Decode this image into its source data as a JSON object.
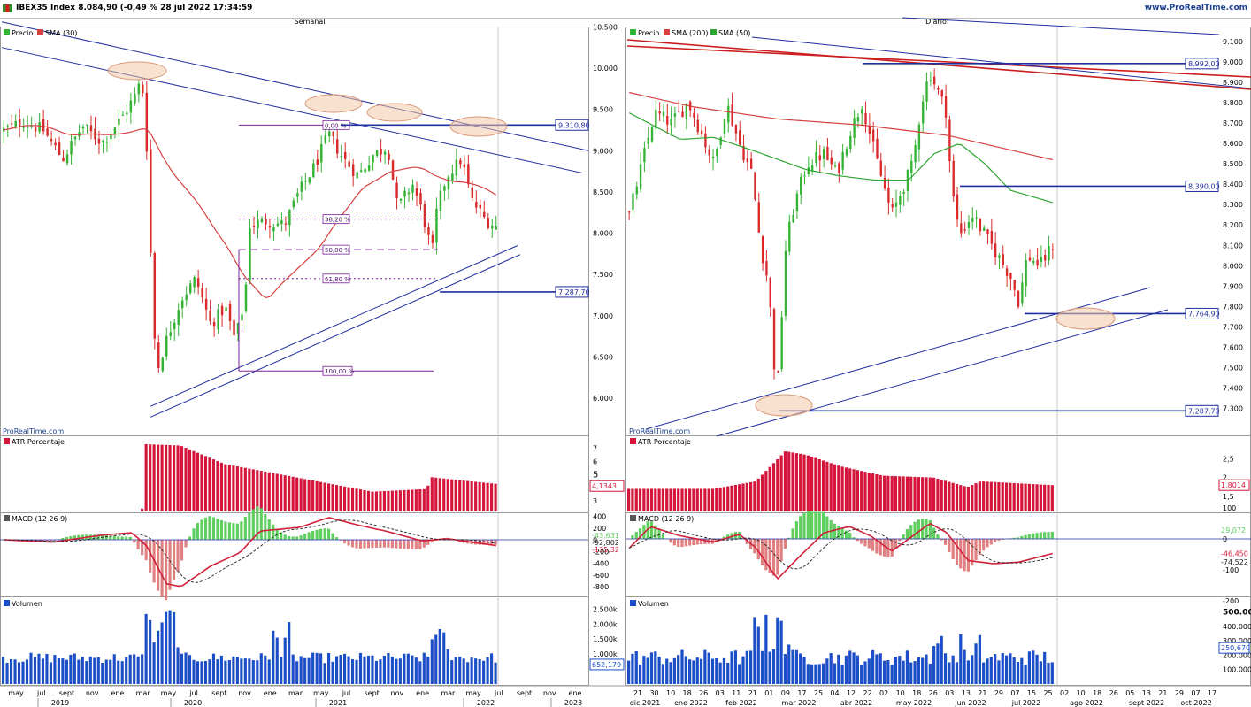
{
  "header": {
    "title": "IBEX35 Index 8.084,90 (-0,49 % 28 jul 2022 17:34:59",
    "brand": "www.ProRealTime.com"
  },
  "colors": {
    "up": "#35b335",
    "down": "#d92b2b",
    "sma_red": "#d64040",
    "sma_green": "#2ea52e",
    "blue_line": "#1f2f9e",
    "atr": "#d4163a",
    "macd_line": "#d0203a",
    "hist_pos": "#5fcf5f",
    "hist_neg": "#e08080",
    "volume": "#1c4fc7",
    "highlight": "#f3c9a8"
  },
  "left": {
    "panel_title": "Semanal",
    "legend": [
      {
        "label": "Precio",
        "color": "#35b335"
      },
      {
        "label": "SMA (30)",
        "color": "#d64040"
      }
    ],
    "watermark": "ProRealTime.com",
    "y_ticks": [
      "10.500",
      "10.000",
      "9.500",
      "9.000",
      "8.500",
      "8.000",
      "7.500",
      "7.000",
      "6.500",
      "6.000"
    ],
    "price_tags": [
      "9.310,80",
      "7.287,70"
    ],
    "fib_labels": [
      "0,00 %",
      "38,20 %",
      "50,00 %",
      "61,80 %",
      "100,00 %"
    ],
    "atr_label": "ATR Porcentaje",
    "atr_ticks": [
      "7",
      "6",
      "5",
      "4",
      "3"
    ],
    "atr_tag": "4,1343",
    "macd_label": "MACD (12 26 9)",
    "macd_ticks": [
      "400",
      "200",
      "0",
      "-200",
      "-400",
      "-600",
      "-800"
    ],
    "macd_tags": [
      "-43,631",
      "-92,802",
      "-135,32"
    ],
    "vol_label": "Volumen",
    "vol_ticks": [
      "2.500k",
      "2.000k",
      "1.500k",
      "1.000k"
    ],
    "vol_tag": "652,179",
    "x_months": [
      "may",
      "jul",
      "sept",
      "nov",
      "ene",
      "mar",
      "may",
      "jul",
      "sept",
      "nov",
      "ene",
      "mar",
      "may",
      "jul",
      "sept",
      "nov",
      "ene",
      "mar",
      "may",
      "jul",
      "sept",
      "nov",
      "ene"
    ],
    "x_years": [
      "2019",
      "2020",
      "2021",
      "2022",
      "2023"
    ]
  },
  "right": {
    "panel_title": "Diario",
    "legend": [
      {
        "label": "Precio",
        "color": "#35b335"
      },
      {
        "label": "SMA (200)",
        "color": "#d64040"
      },
      {
        "label": "SMA (50)",
        "color": "#2ea52e"
      }
    ],
    "watermark": "ProRealTime.com",
    "y_ticks": [
      "9.100",
      "9.000",
      "8.900",
      "8.800",
      "8.700",
      "8.600",
      "8.500",
      "8.400",
      "8.300",
      "8.200",
      "8.100",
      "8.000",
      "7.900",
      "7.800",
      "7.700",
      "7.600",
      "7.500",
      "7.400",
      "7.300"
    ],
    "price_tags": [
      "8.992,00",
      "8.390,00",
      "7.764,90",
      "7.287,70"
    ],
    "atr_label": "ATR Porcentaje",
    "atr_ticks": [
      "2,5",
      "2",
      "1,5"
    ],
    "atr_tag": "1,8014",
    "macd_label": "MACD (12 26 9)",
    "macd_ticks": [
      "100",
      "0",
      "-100",
      "-200"
    ],
    "macd_tags": [
      "29,072",
      "-46,450",
      "-74,522"
    ],
    "vol_label": "Volumen",
    "vol_ticks": [
      "500.000",
      "400.000",
      "300.000",
      "200.000",
      "100.000"
    ],
    "vol_tag": "250,670",
    "x_days": [
      "21",
      "30",
      "10",
      "18",
      "26",
      "03",
      "11",
      "21",
      "01",
      "09",
      "17",
      "25",
      "04",
      "12",
      "22",
      "02",
      "10",
      "18",
      "26",
      "03",
      "13",
      "21",
      "29",
      "07",
      "15",
      "25",
      "02",
      "10",
      "18",
      "26",
      "05",
      "13",
      "21",
      "29",
      "07",
      "17"
    ],
    "x_months": [
      "dic 2021",
      "ene 2022",
      "feb 2022",
      "mar 2022",
      "abr 2022",
      "may 2022",
      "jun 2022",
      "jul 2022",
      "ago 2022",
      "sept 2022",
      "oct 2022"
    ]
  },
  "chart_data": [
    {
      "type": "candlestick",
      "panel": "Semanal",
      "series": [
        {
          "name": "Precio"
        },
        {
          "name": "SMA (30)"
        }
      ],
      "ylim": [
        5700,
        10600
      ],
      "key_levels": [
        9310.8,
        7287.7
      ],
      "fib_levels": [
        {
          "label": "0,00 %",
          "value": 9310
        },
        {
          "label": "38,20 %",
          "value": 8170
        },
        {
          "label": "50,00 %",
          "value": 7800
        },
        {
          "label": "61,80 %",
          "value": 7450
        },
        {
          "label": "100,00 %",
          "value": 6330
        }
      ]
    },
    {
      "type": "candlestick",
      "panel": "Diario",
      "series": [
        {
          "name": "Precio"
        },
        {
          "name": "SMA (200)"
        },
        {
          "name": "SMA (50)"
        }
      ],
      "ylim": [
        7250,
        9150
      ],
      "key_levels": [
        8992.0,
        8390.0,
        7764.9,
        7287.7
      ]
    }
  ]
}
